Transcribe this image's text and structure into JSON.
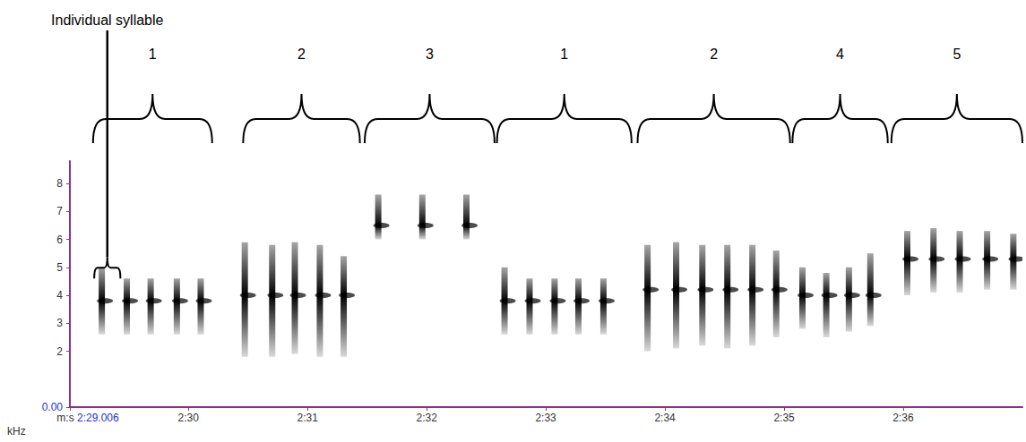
{
  "chart_data": {
    "type": "spectrogram",
    "xlabel": "m:s",
    "ylabel": "kHz",
    "color": "#000000",
    "grid": false,
    "xlim": [
      149.006,
      157.0
    ],
    "xticks": [
      {
        "value": 149.006,
        "label": "2:29.006"
      },
      {
        "value": 150,
        "label": "2:30"
      },
      {
        "value": 151,
        "label": "2:31"
      },
      {
        "value": 152,
        "label": "2:32"
      },
      {
        "value": 153,
        "label": "2:33"
      },
      {
        "value": 154,
        "label": "2:34"
      },
      {
        "value": 155,
        "label": "2:35"
      },
      {
        "value": 156,
        "label": "2:36"
      }
    ],
    "ylim": [
      0,
      8.8
    ],
    "yticks": [
      {
        "value": 0,
        "label": "0.00"
      },
      2,
      3,
      4,
      5,
      6,
      7,
      8
    ],
    "syllables": [
      {
        "time": 149.27,
        "freq_low": 2.6,
        "freq_high": 5.0,
        "freq_peak": 3.8
      },
      {
        "time": 149.48,
        "freq_low": 2.6,
        "freq_high": 4.6,
        "freq_peak": 3.8
      },
      {
        "time": 149.68,
        "freq_low": 2.6,
        "freq_high": 4.6,
        "freq_peak": 3.8
      },
      {
        "time": 149.9,
        "freq_low": 2.6,
        "freq_high": 4.6,
        "freq_peak": 3.8
      },
      {
        "time": 150.1,
        "freq_low": 2.6,
        "freq_high": 4.6,
        "freq_peak": 3.8
      },
      {
        "time": 150.47,
        "freq_low": 1.8,
        "freq_high": 5.9,
        "freq_peak": 4.0
      },
      {
        "time": 150.7,
        "freq_low": 1.8,
        "freq_high": 5.8,
        "freq_peak": 4.0
      },
      {
        "time": 150.89,
        "freq_low": 1.9,
        "freq_high": 5.9,
        "freq_peak": 4.0
      },
      {
        "time": 151.1,
        "freq_low": 1.8,
        "freq_high": 5.8,
        "freq_peak": 4.0
      },
      {
        "time": 151.3,
        "freq_low": 1.8,
        "freq_high": 5.4,
        "freq_peak": 4.0
      },
      {
        "time": 151.59,
        "freq_low": 6.0,
        "freq_high": 7.6,
        "freq_peak": 6.5
      },
      {
        "time": 151.96,
        "freq_low": 6.0,
        "freq_high": 7.6,
        "freq_peak": 6.5
      },
      {
        "time": 152.33,
        "freq_low": 6.0,
        "freq_high": 7.6,
        "freq_peak": 6.5
      },
      {
        "time": 152.65,
        "freq_low": 2.6,
        "freq_high": 5.0,
        "freq_peak": 3.8
      },
      {
        "time": 152.86,
        "freq_low": 2.6,
        "freq_high": 4.6,
        "freq_peak": 3.8
      },
      {
        "time": 153.07,
        "freq_low": 2.6,
        "freq_high": 4.6,
        "freq_peak": 3.8
      },
      {
        "time": 153.27,
        "freq_low": 2.6,
        "freq_high": 4.6,
        "freq_peak": 3.8
      },
      {
        "time": 153.48,
        "freq_low": 2.6,
        "freq_high": 4.6,
        "freq_peak": 3.8
      },
      {
        "time": 153.85,
        "freq_low": 2.0,
        "freq_high": 5.8,
        "freq_peak": 4.2
      },
      {
        "time": 154.09,
        "freq_low": 2.1,
        "freq_high": 5.9,
        "freq_peak": 4.2
      },
      {
        "time": 154.31,
        "freq_low": 2.2,
        "freq_high": 5.8,
        "freq_peak": 4.2
      },
      {
        "time": 154.52,
        "freq_low": 2.1,
        "freq_high": 5.8,
        "freq_peak": 4.2
      },
      {
        "time": 154.73,
        "freq_low": 2.2,
        "freq_high": 5.8,
        "freq_peak": 4.2
      },
      {
        "time": 154.93,
        "freq_low": 2.5,
        "freq_high": 5.6,
        "freq_peak": 4.2
      },
      {
        "time": 155.15,
        "freq_low": 2.8,
        "freq_high": 5.0,
        "freq_peak": 4.0
      },
      {
        "time": 155.35,
        "freq_low": 2.5,
        "freq_high": 4.8,
        "freq_peak": 4.0
      },
      {
        "time": 155.54,
        "freq_low": 2.7,
        "freq_high": 5.0,
        "freq_peak": 4.0
      },
      {
        "time": 155.72,
        "freq_low": 2.9,
        "freq_high": 5.5,
        "freq_peak": 4.0
      },
      {
        "time": 156.03,
        "freq_low": 4.0,
        "freq_high": 6.3,
        "freq_peak": 5.3
      },
      {
        "time": 156.25,
        "freq_low": 4.1,
        "freq_high": 6.4,
        "freq_peak": 5.3
      },
      {
        "time": 156.47,
        "freq_low": 4.1,
        "freq_high": 6.3,
        "freq_peak": 5.3
      },
      {
        "time": 156.7,
        "freq_low": 4.2,
        "freq_high": 6.3,
        "freq_peak": 5.3
      },
      {
        "time": 156.92,
        "freq_low": 4.2,
        "freq_high": 6.2,
        "freq_peak": 5.3
      }
    ],
    "groups": [
      {
        "label": "1",
        "start": 149.2,
        "end": 150.2
      },
      {
        "label": "2",
        "start": 150.46,
        "end": 151.44
      },
      {
        "label": "3",
        "start": 151.48,
        "end": 152.57
      },
      {
        "label": "1",
        "start": 152.59,
        "end": 153.72
      },
      {
        "label": "2",
        "start": 153.77,
        "end": 155.05
      },
      {
        "label": "4",
        "start": 155.07,
        "end": 155.87
      },
      {
        "label": "5",
        "start": 155.9,
        "end": 157.0
      }
    ],
    "annotations": [
      {
        "text": "Individual syllable",
        "start": 149.21,
        "end": 149.43,
        "freq": 4.6
      }
    ]
  }
}
